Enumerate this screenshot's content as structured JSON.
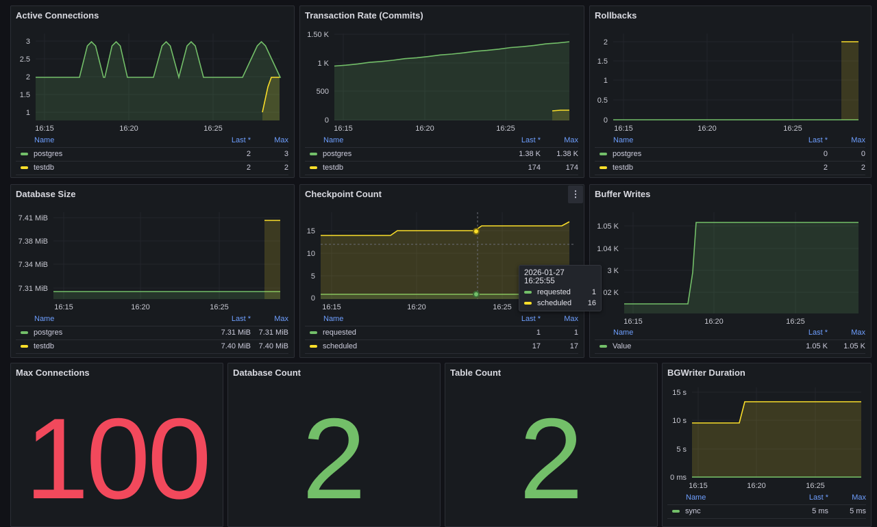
{
  "colors": {
    "green": "#73bf69",
    "yellow": "#fade2a",
    "red": "#f2495c",
    "blue": "#6e9fff"
  },
  "legend_headers": {
    "name": "Name",
    "last": "Last *",
    "max": "Max"
  },
  "panels": {
    "active_connections": {
      "title": "Active Connections",
      "y_ticks": [
        "3",
        "2.5",
        "2",
        "1.5",
        "1"
      ],
      "x_ticks": [
        "16:15",
        "16:20",
        "16:25"
      ],
      "rows": [
        {
          "name": "postgres",
          "last": "2",
          "max": "3",
          "color": "green"
        },
        {
          "name": "testdb",
          "last": "2",
          "max": "2",
          "color": "yellow"
        }
      ]
    },
    "transaction_rate": {
      "title": "Transaction Rate (Commits)",
      "y_ticks": [
        "1.50 K",
        "1 K",
        "500",
        "0"
      ],
      "x_ticks": [
        "16:15",
        "16:20",
        "16:25"
      ],
      "rows": [
        {
          "name": "postgres",
          "last": "1.38 K",
          "max": "1.38 K",
          "color": "green"
        },
        {
          "name": "testdb",
          "last": "174",
          "max": "174",
          "color": "yellow"
        }
      ]
    },
    "rollbacks": {
      "title": "Rollbacks",
      "y_ticks": [
        "2",
        "1.5",
        "1",
        "0.5",
        "0"
      ],
      "x_ticks": [
        "16:15",
        "16:20",
        "16:25"
      ],
      "rows": [
        {
          "name": "postgres",
          "last": "0",
          "max": "0",
          "color": "green"
        },
        {
          "name": "testdb",
          "last": "2",
          "max": "2",
          "color": "yellow"
        }
      ]
    },
    "database_size": {
      "title": "Database Size",
      "y_ticks": [
        "7.41 MiB",
        "7.38 MiB",
        "7.34 MiB",
        "7.31 MiB"
      ],
      "x_ticks": [
        "16:15",
        "16:20",
        "16:25"
      ],
      "rows": [
        {
          "name": "postgres",
          "last": "7.31 MiB",
          "max": "7.31 MiB",
          "color": "green"
        },
        {
          "name": "testdb",
          "last": "7.40 MiB",
          "max": "7.40 MiB",
          "color": "yellow"
        }
      ]
    },
    "checkpoint_count": {
      "title": "Checkpoint Count",
      "menu_icon": "⋮",
      "y_ticks": [
        "15",
        "10",
        "5",
        "0"
      ],
      "x_ticks": [
        "16:15",
        "16:20",
        "16:25"
      ],
      "rows": [
        {
          "name": "requested",
          "last": "1",
          "max": "1",
          "color": "green"
        },
        {
          "name": "scheduled",
          "last": "17",
          "max": "17",
          "color": "yellow"
        }
      ],
      "tooltip": {
        "time": "2026-01-27 16:25:55",
        "rows": [
          {
            "name": "requested",
            "value": "1",
            "color": "green"
          },
          {
            "name": "scheduled",
            "value": "16",
            "color": "yellow"
          }
        ]
      }
    },
    "buffer_writes": {
      "title": "Buffer Writes",
      "y_ticks": [
        "1.05 K",
        "1.04 K",
        "3 K",
        "02 K"
      ],
      "x_ticks": [
        "16:15",
        "16:20",
        "16:25"
      ],
      "rows": [
        {
          "name": "Value",
          "last": "1.05 K",
          "max": "1.05 K",
          "color": "green"
        }
      ]
    },
    "max_connections": {
      "title": "Max Connections",
      "value": "100",
      "color": "red"
    },
    "database_count": {
      "title": "Database Count",
      "value": "2",
      "color": "green"
    },
    "table_count": {
      "title": "Table Count",
      "value": "2",
      "color": "green"
    },
    "bgwriter_duration": {
      "title": "BGWriter Duration",
      "y_ticks": [
        "15 s",
        "10 s",
        "5 s",
        "0 ms"
      ],
      "x_ticks": [
        "16:15",
        "16:20",
        "16:25"
      ],
      "rows": [
        {
          "name": "sync",
          "last": "5 ms",
          "max": "5 ms",
          "color": "green"
        }
      ]
    }
  }
}
